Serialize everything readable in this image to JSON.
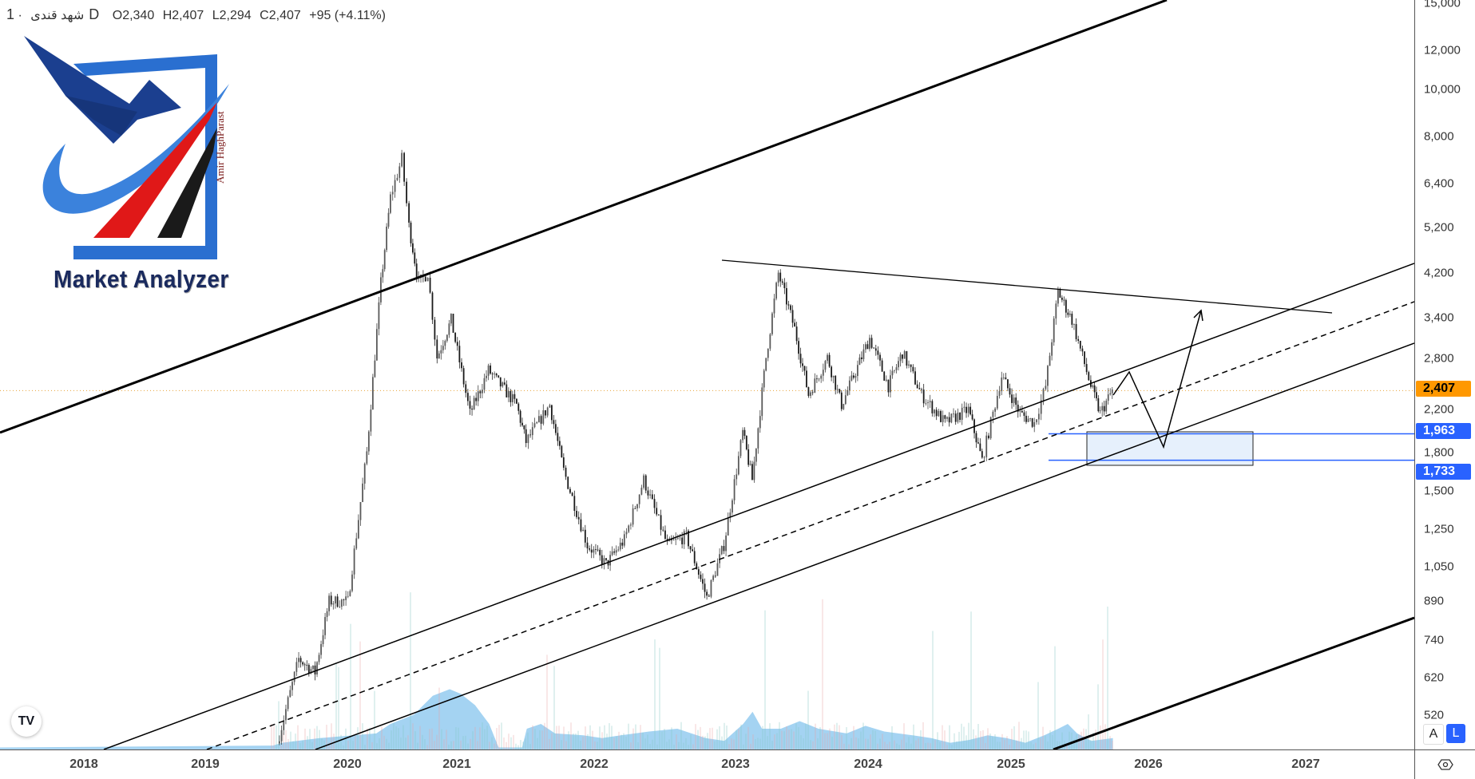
{
  "header": {
    "symbol": "شهد قندی",
    "separator": "·",
    "interval": "1D",
    "open_label": "O",
    "open": "2,340",
    "high_label": "H",
    "high": "2,407",
    "low_label": "L",
    "low": "2,294",
    "close_label": "C",
    "close": "2,407",
    "change": "+95 (+4.11%)"
  },
  "logo": {
    "title": "Market Analyzer",
    "author": "Amir HaghParast"
  },
  "tradingview_badge": "TV",
  "scale_buttons": {
    "auto": "A",
    "log": "L"
  },
  "colors": {
    "last_price": "#ff9800",
    "level": "#2962ff",
    "volume": "#5aaee8",
    "candle": "#333333"
  },
  "chart_data": {
    "type": "candlestick",
    "y_scale": "log",
    "ylim": [
      450,
      15500
    ],
    "price_ticks": [
      "15,000",
      "12,000",
      "10,000",
      "8,000",
      "6,400",
      "5,200",
      "4,200",
      "3,400",
      "2,800",
      "2,200",
      "1,800",
      "1,500",
      "1,250",
      "1,050",
      "890",
      "740",
      "620",
      "520"
    ],
    "price_tick_values": [
      15000,
      12000,
      10000,
      8000,
      6400,
      5200,
      4200,
      3400,
      2800,
      2200,
      1800,
      1500,
      1250,
      1050,
      890,
      740,
      620,
      520
    ],
    "time_ticks": [
      "2018",
      "2019",
      "2020",
      "2021",
      "2022",
      "2023",
      "2024",
      "2025",
      "2026",
      "2027"
    ],
    "last_price": {
      "value": 2407,
      "label": "2,407"
    },
    "levels": [
      {
        "value": 1963,
        "label": "1,963"
      },
      {
        "value": 1733,
        "label": "1,733"
      }
    ],
    "series": [
      [
        "2019-07-05",
        455
      ],
      [
        "2019-08-29",
        678
      ],
      [
        "2019-10-10",
        636
      ],
      [
        "2019-11-15",
        890
      ],
      [
        "2020-01-03",
        890
      ],
      [
        "2020-03-06",
        1800
      ],
      [
        "2020-04-22",
        4000
      ],
      [
        "2020-05-24",
        6000
      ],
      [
        "2020-07-01",
        7200
      ],
      [
        "2020-07-25",
        5240
      ],
      [
        "2020-08-26",
        4000
      ],
      [
        "2020-09-26",
        4200
      ],
      [
        "2020-10-27",
        2815
      ],
      [
        "2020-12-13",
        3360
      ],
      [
        "2021-02-05",
        2160
      ],
      [
        "2021-03-26",
        2650
      ],
      [
        "2021-06-09",
        2250
      ],
      [
        "2021-07-04",
        1890
      ],
      [
        "2021-09-05",
        2250
      ],
      [
        "2021-10-12",
        1650
      ],
      [
        "2021-12-14",
        1160
      ],
      [
        "2022-02-01",
        1060
      ],
      [
        "2022-03-20",
        1190
      ],
      [
        "2022-05-09",
        1580
      ],
      [
        "2022-07-09",
        1160
      ],
      [
        "2022-08-27",
        1210
      ],
      [
        "2022-10-19",
        906
      ],
      [
        "2022-12-02",
        1160
      ],
      [
        "2023-01-21",
        1975
      ],
      [
        "2023-02-16",
        1580
      ],
      [
        "2023-03-26",
        2815
      ],
      [
        "2023-04-29",
        4190
      ],
      [
        "2023-06-13",
        3220
      ],
      [
        "2023-07-21",
        2360
      ],
      [
        "2023-09-11",
        2815
      ],
      [
        "2023-10-20",
        2250
      ],
      [
        "2024-01-05",
        3085
      ],
      [
        "2024-02-22",
        2460
      ],
      [
        "2024-03-29",
        2880
      ],
      [
        "2024-05-17",
        2360
      ],
      [
        "2024-07-16",
        2065
      ],
      [
        "2024-09-14",
        2200
      ],
      [
        "2024-10-19",
        1730
      ],
      [
        "2024-12-08",
        2580
      ],
      [
        "2025-01-25",
        2160
      ],
      [
        "2025-03-04",
        2065
      ],
      [
        "2025-04-03",
        2460
      ],
      [
        "2025-05-06",
        3840
      ],
      [
        "2025-06-12",
        3360
      ],
      [
        "2025-08-01",
        2460
      ],
      [
        "2025-08-26",
        2160
      ],
      [
        "2025-09-27",
        2407
      ]
    ]
  }
}
